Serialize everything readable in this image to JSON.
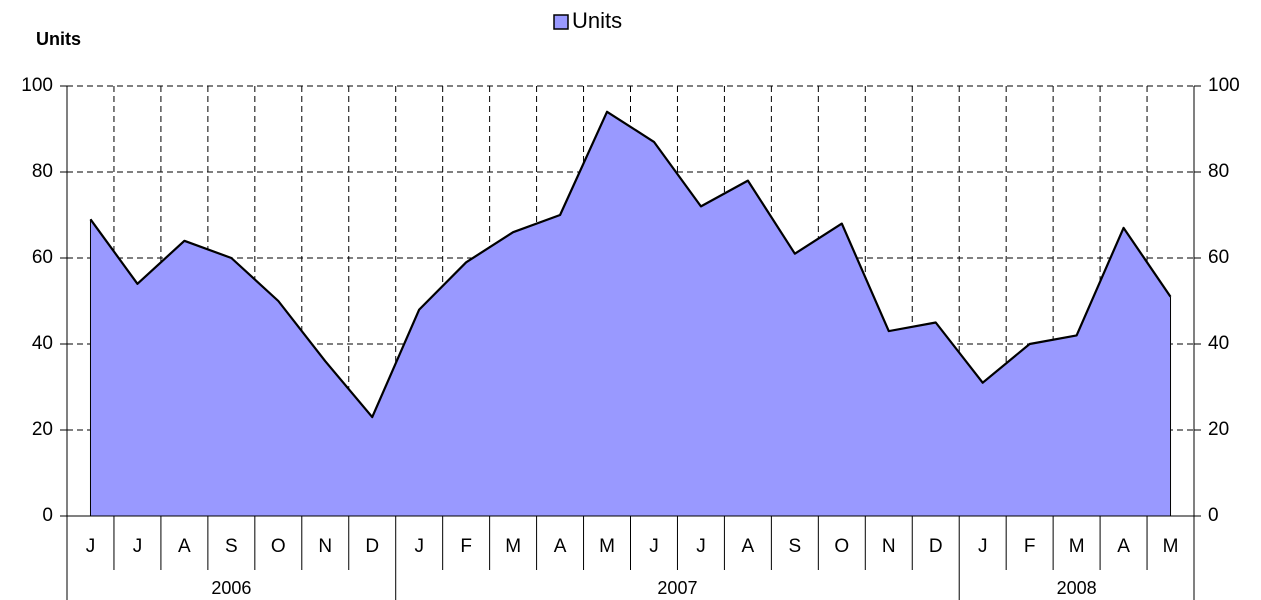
{
  "chart_data": {
    "type": "area",
    "y_axis_title": "Units",
    "categories": [
      "J",
      "J",
      "A",
      "S",
      "O",
      "N",
      "D",
      "J",
      "F",
      "M",
      "A",
      "M",
      "J",
      "J",
      "A",
      "S",
      "O",
      "N",
      "D",
      "J",
      "F",
      "M",
      "A",
      "M"
    ],
    "groups": [
      {
        "name": "2006",
        "span": 7
      },
      {
        "name": "2007",
        "span": 12
      },
      {
        "name": "2008",
        "span": 5
      }
    ],
    "series": [
      {
        "name": "Units",
        "color": "#9999ff",
        "values": [
          69,
          54,
          64,
          60,
          50,
          36,
          23,
          48,
          59,
          66,
          70,
          94,
          87,
          72,
          78,
          61,
          68,
          43,
          45,
          31,
          40,
          42,
          67,
          51
        ]
      }
    ],
    "ylim": [
      0,
      100
    ],
    "yticks": [
      0,
      20,
      40,
      60,
      80,
      100
    ],
    "y2lim": [
      0,
      100
    ],
    "y2ticks": [
      0,
      20,
      40,
      60,
      80,
      100
    ],
    "grid": true,
    "legend": "top"
  }
}
